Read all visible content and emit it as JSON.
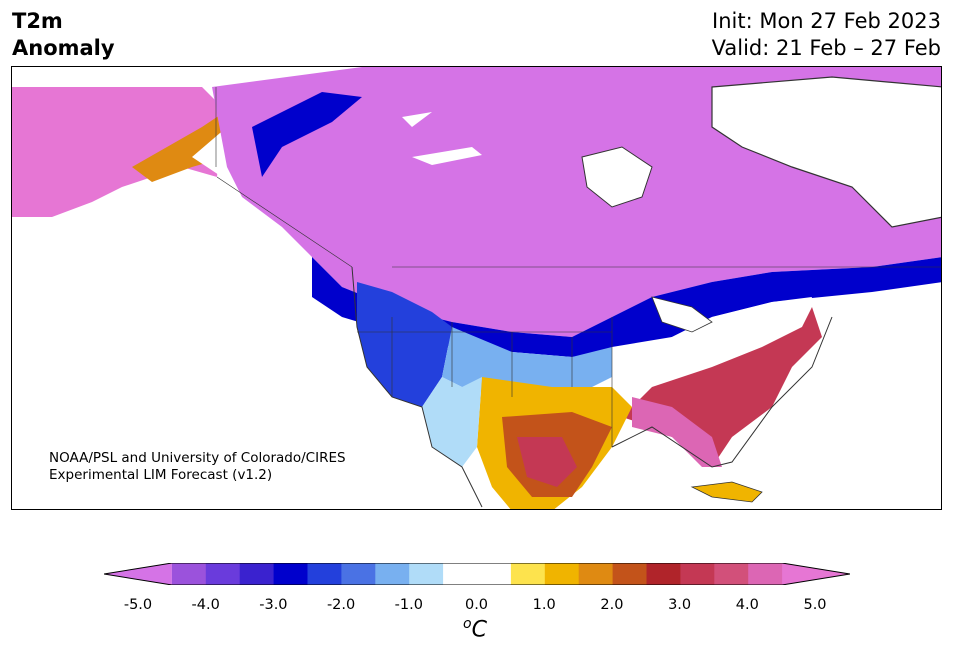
{
  "header": {
    "title_line1": "T2m",
    "title_line2": "Anomaly",
    "init": "Init: Mon 27 Feb 2023",
    "valid": "Valid: 21 Feb – 27 Feb"
  },
  "credit": {
    "line1": "NOAA/PSL and University of Colorado/CIRES",
    "line2": "Experimental LIM Forecast (v1.2)"
  },
  "colorbar": {
    "ticks": [
      "-5.0",
      "-4.0",
      "-3.0",
      "-2.0",
      "-1.0",
      "0.0",
      "1.0",
      "2.0",
      "3.0",
      "4.0",
      "5.0"
    ],
    "unit_sup": "o",
    "unit_main": "C",
    "colors": [
      "#d573e6",
      "#9b52dc",
      "#6a3bdc",
      "#3a22cf",
      "#0000cc",
      "#2340dc",
      "#4a72e4",
      "#78b0f0",
      "#b0dcf8",
      "#ffffff",
      "#ffffff",
      "#fde34d",
      "#f0b400",
      "#df8a12",
      "#c3531a",
      "#b0242a",
      "#c43854",
      "#d2507a",
      "#dc66b4",
      "#e676d4"
    ]
  },
  "colors": {
    "cold_extreme": "#d573e6",
    "warm_extreme": "#e676d4",
    "coastline": "#333333"
  }
}
